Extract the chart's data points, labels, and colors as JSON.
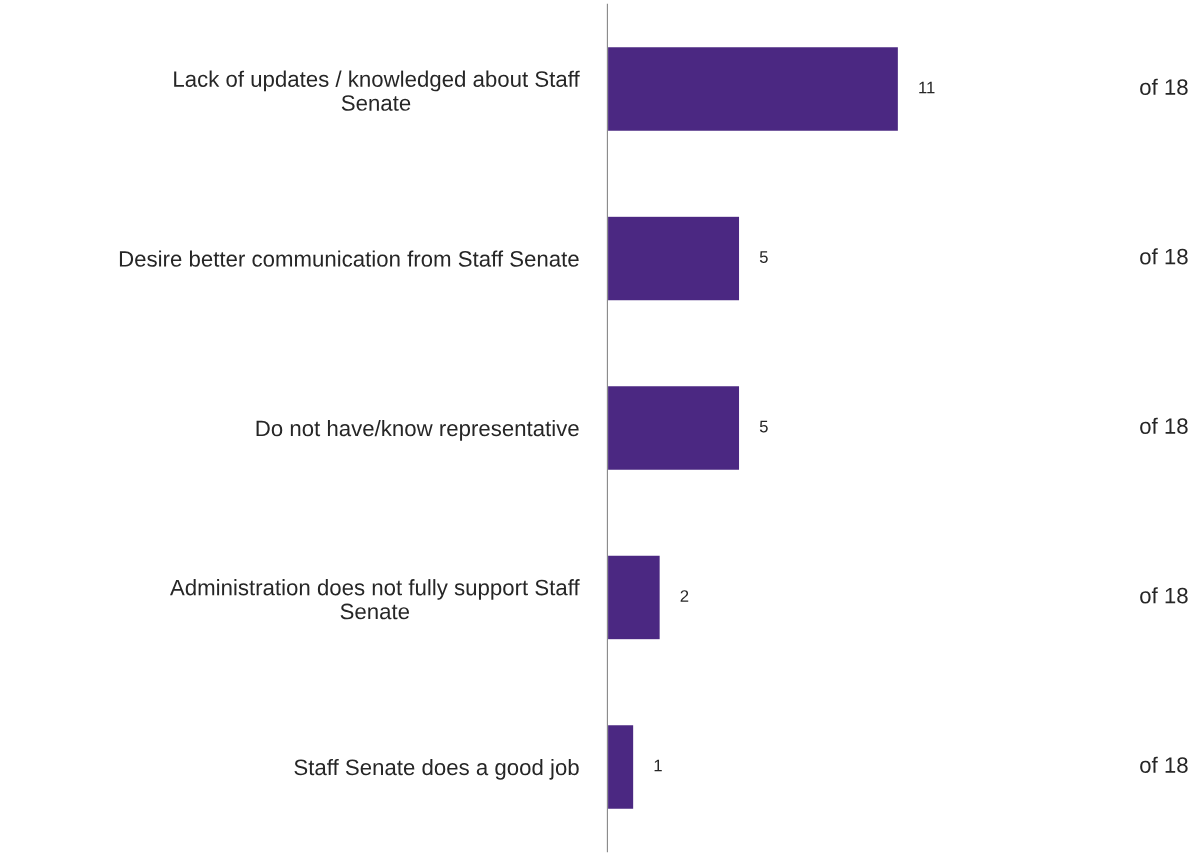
{
  "chart_data": {
    "type": "bar",
    "orientation": "horizontal",
    "categories": [
      "Lack of updates / knowledged about Staff\nSenate",
      "Desire better communication from Staff Senate",
      "Do not have/know representative",
      "Administration does not fully support Staff\nSenate",
      "Staff Senate does a good job"
    ],
    "values": [
      11,
      5,
      5,
      2,
      1
    ],
    "color": "#4b2882",
    "data_labels": true,
    "tick_labels": "y",
    "grid": false,
    "legend": false,
    "annotations": [
      "of 18",
      "of 18",
      "of 18",
      "of 18",
      "of 18"
    ]
  }
}
